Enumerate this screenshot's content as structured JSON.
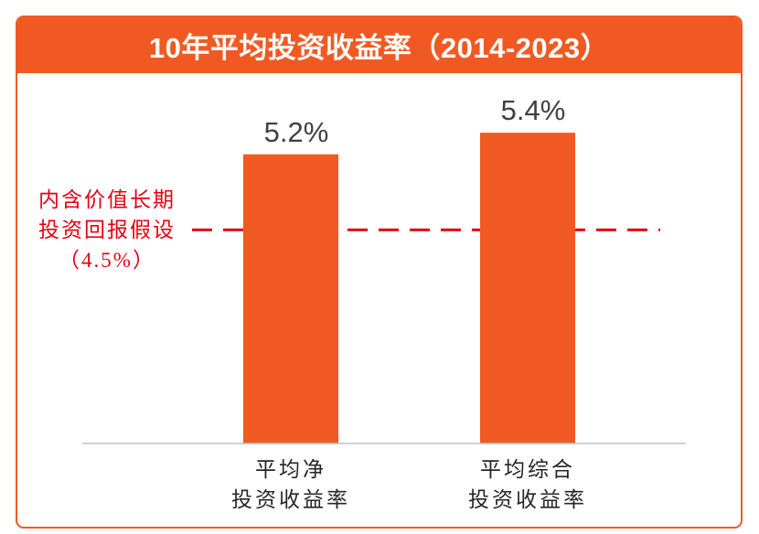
{
  "theme": {
    "header_background": "#F05A22",
    "header_text": "#FFFFFF",
    "card_border": "#F05A22"
  },
  "chart_data": {
    "type": "bar",
    "title": "10年平均投资收益率（2014-2023）",
    "categories": [
      "平均净\n投资收益率",
      "平均综合\n投资收益率"
    ],
    "values": [
      5.2,
      5.4
    ],
    "value_labels": [
      "5.2%",
      "5.4%"
    ],
    "colors": {
      "bars": "#F05A22",
      "reference_line": "#E60012"
    },
    "reference_line": {
      "value": 4.5,
      "label": "内含价值长期\n投资回报假设\n（4.5%）"
    },
    "grid": false,
    "legend": false
  }
}
